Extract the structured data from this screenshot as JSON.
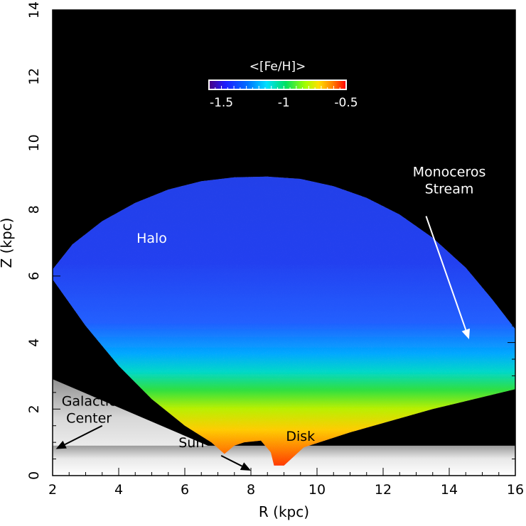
{
  "chart_data": {
    "type": "heatmap",
    "title": "",
    "xlabel": "R (kpc)",
    "ylabel": "Z (kpc)",
    "xlim": [
      2,
      16
    ],
    "ylim": [
      0,
      14
    ],
    "x_ticks": [
      "2",
      "4",
      "6",
      "8",
      "10",
      "12",
      "14",
      "16"
    ],
    "y_ticks": [
      "0",
      "2",
      "4",
      "6",
      "8",
      "10",
      "12",
      "14"
    ],
    "colorbar": {
      "label": "<[Fe/H]>",
      "range": [
        -1.6,
        -0.5
      ],
      "tick_labels": [
        "-1.5",
        "-1",
        "-0.5"
      ],
      "tick_values": [
        -1.5,
        -1.0,
        -0.5
      ]
    },
    "metallicity_profile": [
      {
        "z": 0.3,
        "feh": -0.52
      },
      {
        "z": 0.8,
        "feh": -0.6
      },
      {
        "z": 1.3,
        "feh": -0.72
      },
      {
        "z": 1.8,
        "feh": -0.88
      },
      {
        "z": 2.3,
        "feh": -1.02
      },
      {
        "z": 2.8,
        "feh": -1.18
      },
      {
        "z": 3.5,
        "feh": -1.3
      },
      {
        "z": 4.5,
        "feh": -1.4
      },
      {
        "z": 6.0,
        "feh": -1.47
      },
      {
        "z": 9.0,
        "feh": -1.5
      }
    ],
    "annotations": [
      {
        "text": "Halo",
        "x": 5.0,
        "y": 7.0,
        "color": "#ffffff"
      },
      {
        "text": "Disk",
        "x": 9.5,
        "y": 1.05,
        "color": "#000000"
      },
      {
        "text": "Monoceros Stream",
        "x": 14.0,
        "y": 9.0,
        "color": "#ffffff"
      },
      {
        "text": "Galactic Center",
        "x": 3.1,
        "y": 2.1,
        "color": "#000000"
      },
      {
        "text": "Sun",
        "x": 6.2,
        "y": 0.85,
        "color": "#000000"
      }
    ],
    "arrows": [
      {
        "name": "monoceros-arrow",
        "from": [
          13.3,
          7.8
        ],
        "to": [
          14.6,
          4.1
        ],
        "color": "#ffffff"
      },
      {
        "name": "galactic-center-arrow",
        "from": [
          3.5,
          1.5
        ],
        "to": [
          2.1,
          0.8
        ],
        "color": "#000000"
      },
      {
        "name": "sun-arrow",
        "from": [
          7.1,
          0.6
        ],
        "to": [
          8.0,
          0.15
        ],
        "color": "#000000"
      }
    ],
    "grid": false,
    "background": "#000000"
  }
}
